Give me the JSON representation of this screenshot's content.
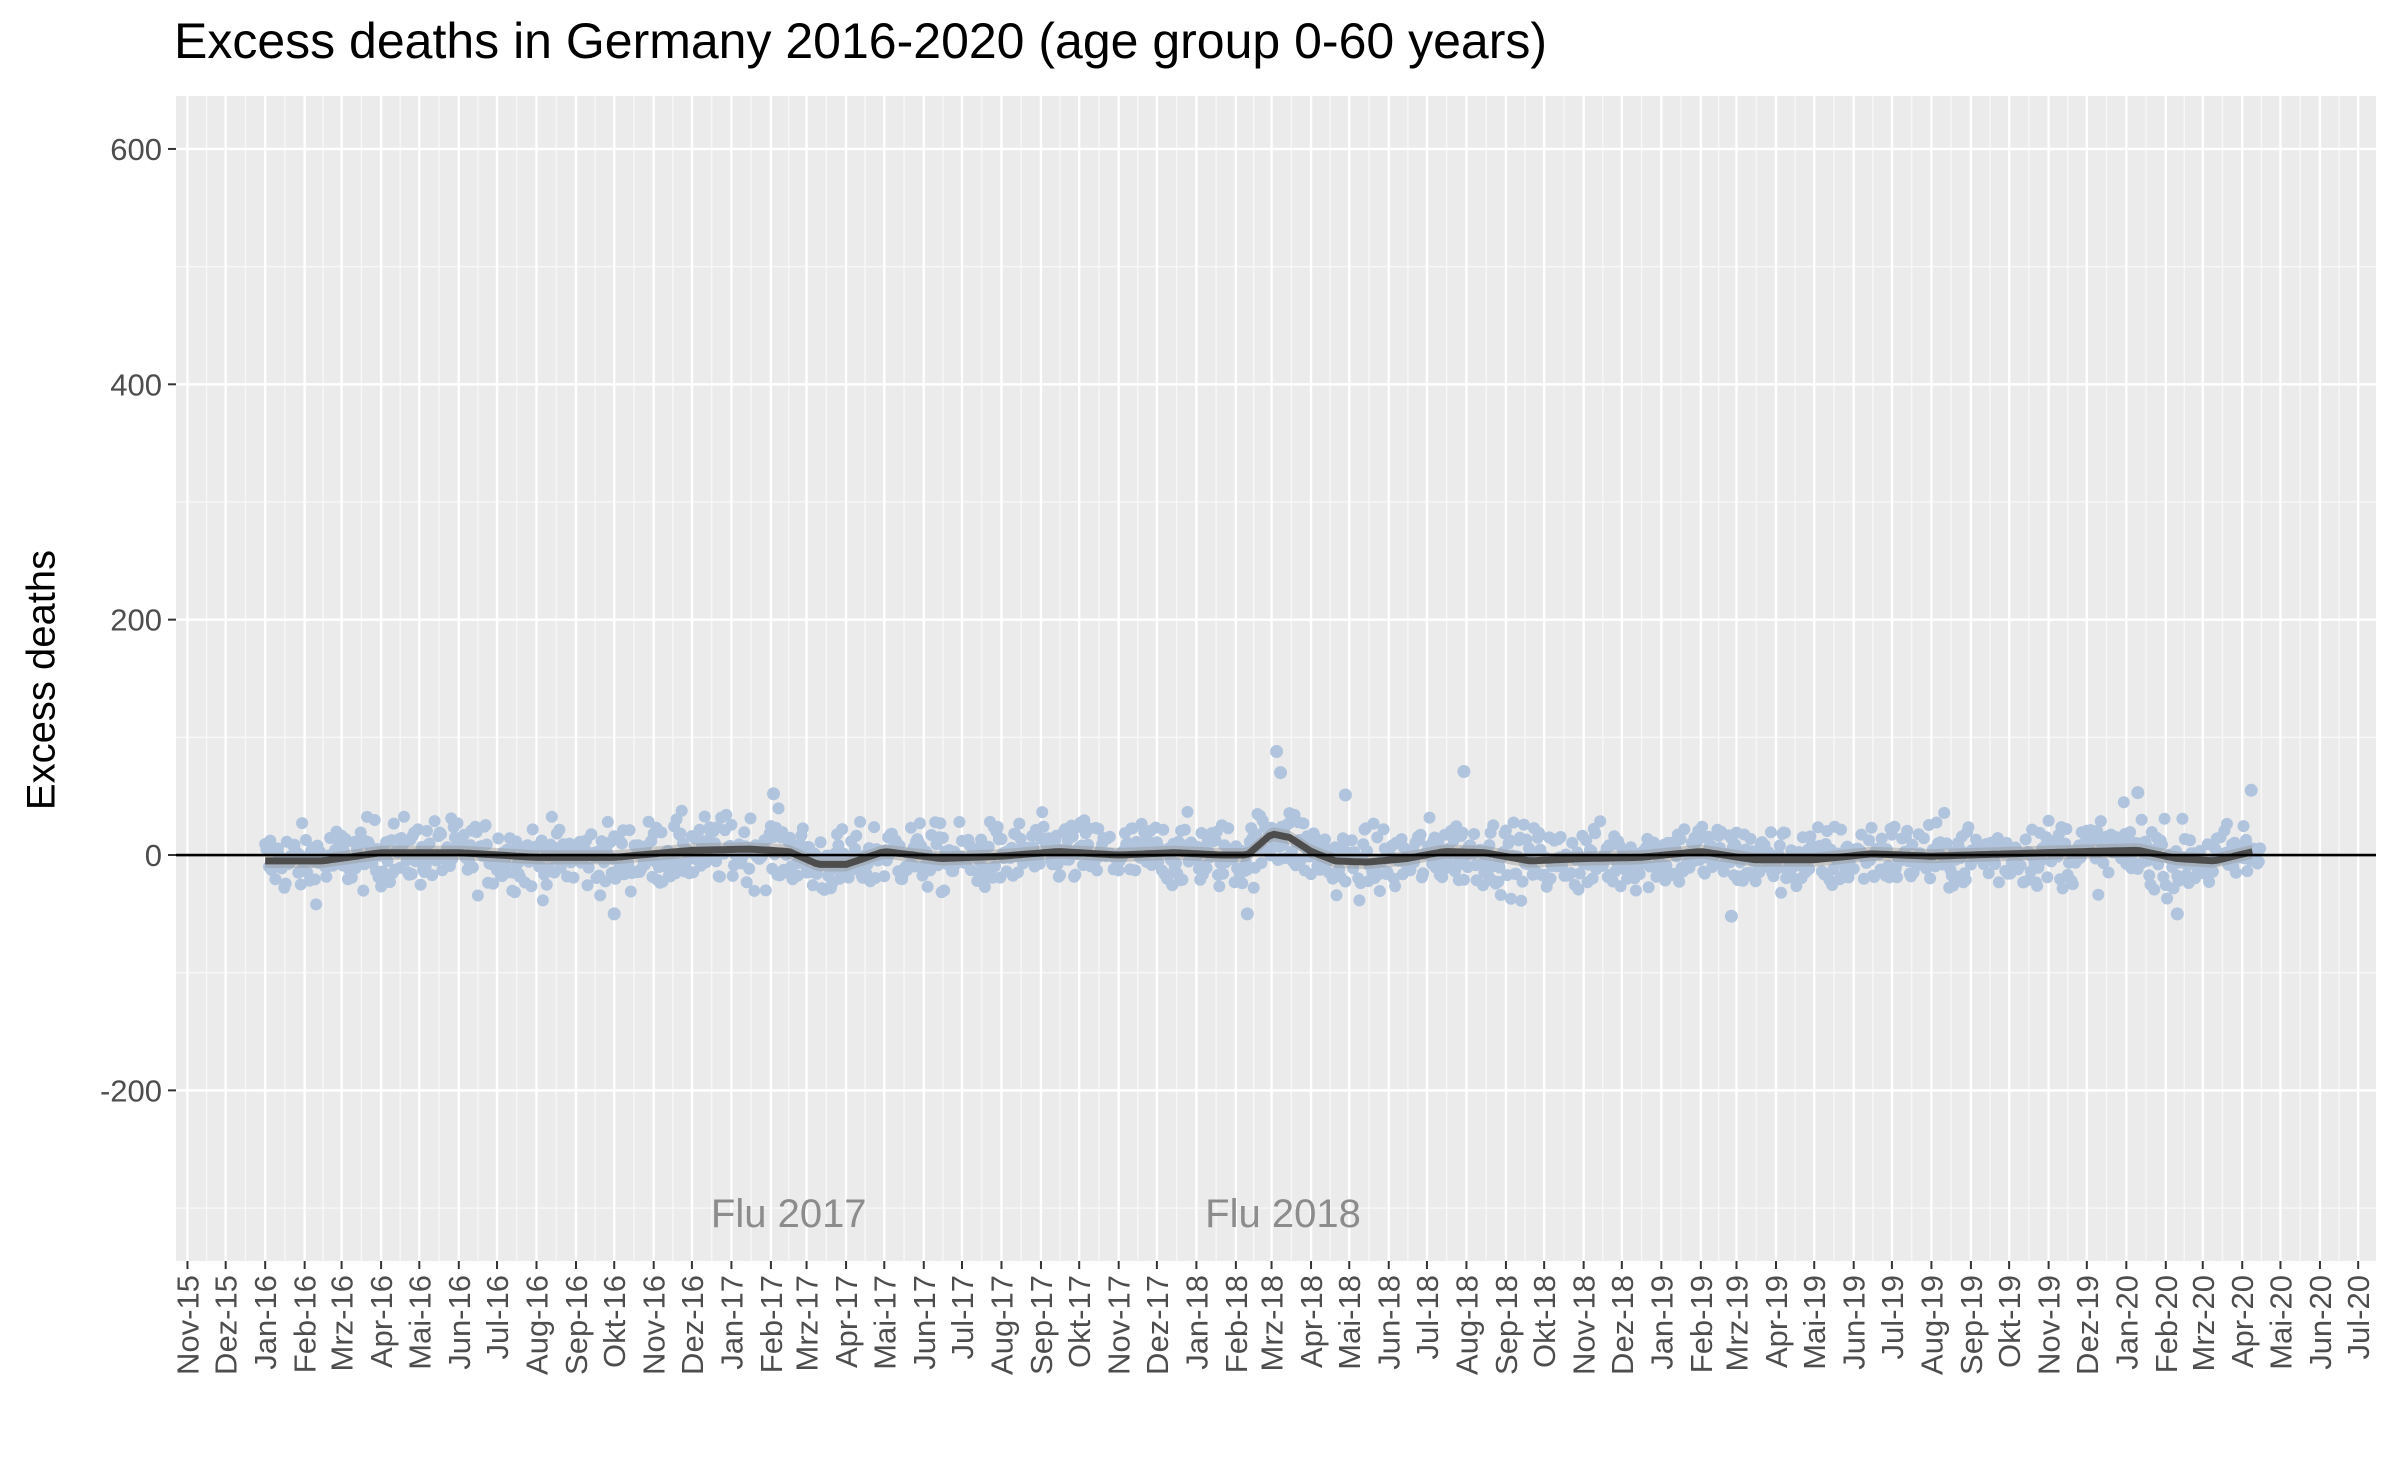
{
  "chart_data": {
    "type": "scatter",
    "title": "Excess deaths in Germany 2016-2020 (age group 0-60 years)",
    "xlabel": "",
    "ylabel": "Excess deaths",
    "ylim": [
      -345,
      645
    ],
    "yticks": [
      -200,
      0,
      200,
      400,
      600
    ],
    "xlim": [
      "2015-10-23",
      "2020-07-15"
    ],
    "xticks": [
      "Nov-15",
      "Dez-15",
      "Jan-16",
      "Feb-16",
      "Mrz-16",
      "Apr-16",
      "Mai-16",
      "Jun-16",
      "Jul-16",
      "Aug-16",
      "Sep-16",
      "Okt-16",
      "Nov-16",
      "Dez-16",
      "Jan-17",
      "Feb-17",
      "Mrz-17",
      "Apr-17",
      "Mai-17",
      "Jun-17",
      "Jul-17",
      "Aug-17",
      "Sep-17",
      "Okt-17",
      "Nov-17",
      "Dez-17",
      "Jan-18",
      "Feb-18",
      "Mrz-18",
      "Apr-18",
      "Mai-18",
      "Jun-18",
      "Jul-18",
      "Aug-18",
      "Sep-18",
      "Okt-18",
      "Nov-18",
      "Dez-18",
      "Jan-19",
      "Feb-19",
      "Mrz-19",
      "Apr-19",
      "Mai-19",
      "Jun-19",
      "Jul-19",
      "Aug-19",
      "Sep-19",
      "Okt-19",
      "Nov-19",
      "Dez-19",
      "Jan-20",
      "Feb-20",
      "Mrz-20",
      "Apr-20",
      "Mai-20",
      "Jun-20",
      "Jul-20"
    ],
    "grid": true,
    "reference_line": 0,
    "annotations": [
      {
        "text": "Flu 2017",
        "x": "2017-02-15",
        "y": -305
      },
      {
        "text": "Flu 2018",
        "x": "2018-03-10",
        "y": -305
      }
    ],
    "series": [
      {
        "kind": "points",
        "color": "#b0c4de",
        "x_start": "2016-01-01",
        "x_end": "2020-04-15",
        "spread": 14,
        "peaks": [
          {
            "x": "2018-03-05",
            "y": 88
          },
          {
            "x": "2018-03-08",
            "y": 70
          },
          {
            "x": "2018-07-30",
            "y": 71
          },
          {
            "x": "2020-04-08",
            "y": 55
          },
          {
            "x": "2020-01-10",
            "y": 53
          },
          {
            "x": "2017-02-03",
            "y": 52
          },
          {
            "x": "2018-04-28",
            "y": 51
          },
          {
            "x": "2016-10-01",
            "y": -50
          },
          {
            "x": "2018-02-10",
            "y": -50
          },
          {
            "x": "2019-02-25",
            "y": -52
          },
          {
            "x": "2020-02-10",
            "y": -50
          }
        ]
      },
      {
        "kind": "smooth",
        "color": "#4d4d4d",
        "x": [
          "2016-01-01",
          "2016-02-15",
          "2016-04-01",
          "2016-06-01",
          "2016-08-01",
          "2016-10-01",
          "2016-12-01",
          "2017-01-15",
          "2017-02-15",
          "2017-03-10",
          "2017-04-01",
          "2017-05-01",
          "2017-06-15",
          "2017-08-01",
          "2017-09-15",
          "2017-11-01",
          "2017-12-15",
          "2018-01-20",
          "2018-02-10",
          "2018-03-01",
          "2018-03-15",
          "2018-04-01",
          "2018-04-20",
          "2018-05-15",
          "2018-06-15",
          "2018-07-15",
          "2018-08-15",
          "2018-09-20",
          "2018-11-01",
          "2018-12-15",
          "2019-02-01",
          "2019-03-15",
          "2019-05-01",
          "2019-06-15",
          "2019-08-01",
          "2019-10-01",
          "2019-12-01",
          "2020-01-10",
          "2020-02-10",
          "2020-03-10",
          "2020-04-10"
        ],
        "y": [
          -5,
          -5,
          2,
          2,
          -2,
          -2,
          4,
          5,
          3,
          -8,
          -8,
          3,
          -3,
          -1,
          3,
          0,
          2,
          0,
          0,
          18,
          15,
          3,
          -5,
          -6,
          -3,
          3,
          2,
          -5,
          -3,
          -2,
          3,
          -4,
          -4,
          1,
          -1,
          1,
          3,
          4,
          -3,
          -5,
          3
        ]
      }
    ]
  }
}
